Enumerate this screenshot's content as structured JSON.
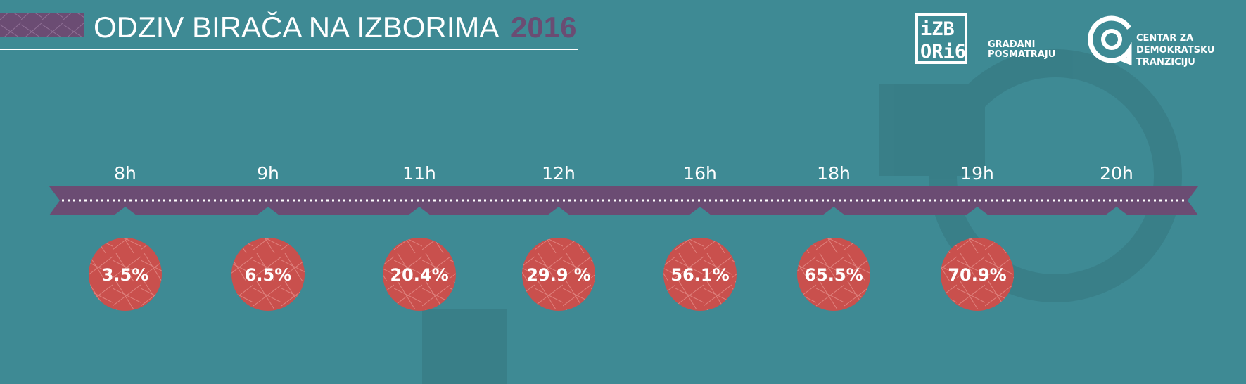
{
  "header": {
    "title": "ODZIV BIRAČA NA IZBORIMA",
    "year": "2016"
  },
  "logos": {
    "izbori": {
      "lines": [
        "iZB",
        "ORi6"
      ],
      "tagline": [
        "GRAĐANI",
        "POSMATRAJU"
      ]
    },
    "cdt": {
      "lines": [
        "CENTAR ZA",
        "DEMOKRATSKU",
        "TRANZICIJU"
      ]
    }
  },
  "timeline": {
    "times": [
      "8h",
      "9h",
      "11h",
      "12h",
      "16h",
      "18h",
      "19h",
      "20h"
    ],
    "turnout": [
      "3.5%",
      "6.5%",
      "20.4%",
      "29.9 %",
      "56.1%",
      "65.5%",
      "70.9%"
    ]
  }
}
